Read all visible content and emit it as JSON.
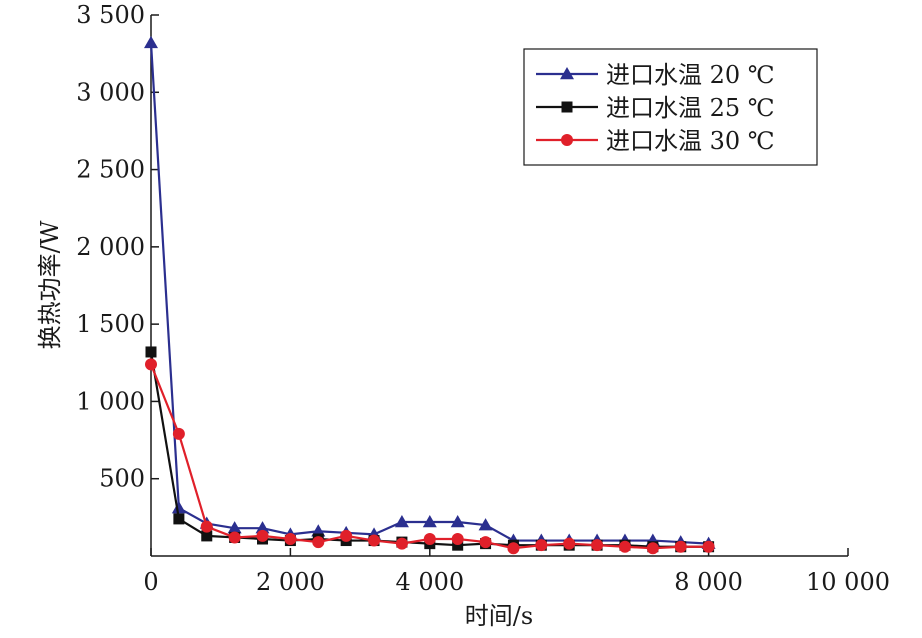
{
  "chart_data": {
    "type": "line",
    "xlabel": "时间/s",
    "ylabel": "换热功率/W",
    "xlim": [
      0,
      10000
    ],
    "ylim": [
      0,
      3500
    ],
    "x_ticks": [
      {
        "value": 0,
        "label": "0"
      },
      {
        "value": 2000,
        "label": "2 000"
      },
      {
        "value": 4000,
        "label": "4 000"
      },
      {
        "value": 8000,
        "label": "8 000"
      },
      {
        "value": 10000,
        "label": "10 000"
      }
    ],
    "y_ticks": [
      {
        "value": 500,
        "label": "500"
      },
      {
        "value": 1000,
        "label": "1 000"
      },
      {
        "value": 1500,
        "label": "1 500"
      },
      {
        "value": 2000,
        "label": "2 000"
      },
      {
        "value": 2500,
        "label": "2 500"
      },
      {
        "value": 3000,
        "label": "3 000"
      },
      {
        "value": 3500,
        "label": "3 500"
      }
    ],
    "legend_position": "top-right",
    "grid": false,
    "series": [
      {
        "name": "进口水温 20 ℃",
        "color": "#2b2f8f",
        "marker": "triangle",
        "x": [
          0,
          400,
          800,
          1200,
          1600,
          2000,
          2400,
          2800,
          3200,
          3600,
          4000,
          4400,
          4800,
          5200,
          5600,
          6000,
          6400,
          6800,
          7200,
          7600,
          8000
        ],
        "y": [
          3320,
          310,
          210,
          180,
          180,
          140,
          160,
          150,
          140,
          220,
          220,
          220,
          200,
          100,
          100,
          100,
          100,
          100,
          100,
          90,
          80
        ]
      },
      {
        "name": "进口水温 25 ℃",
        "color": "#111111",
        "marker": "square",
        "x": [
          0,
          400,
          800,
          1200,
          1600,
          2000,
          2400,
          2800,
          3200,
          3600,
          4000,
          4400,
          4800,
          5200,
          5600,
          6000,
          6400,
          6800,
          7200,
          7600,
          8000
        ],
        "y": [
          1320,
          240,
          130,
          120,
          110,
          100,
          110,
          100,
          100,
          90,
          80,
          70,
          80,
          70,
          70,
          70,
          70,
          70,
          60,
          60,
          60
        ]
      },
      {
        "name": "进口水温 30 ℃",
        "color": "#e0202a",
        "marker": "circle",
        "x": [
          0,
          400,
          800,
          1200,
          1600,
          2000,
          2400,
          2800,
          3200,
          3600,
          4000,
          4400,
          4800,
          5200,
          5600,
          6000,
          6400,
          6800,
          7200,
          7600,
          8000
        ],
        "y": [
          1240,
          790,
          190,
          120,
          130,
          110,
          90,
          130,
          100,
          80,
          110,
          110,
          90,
          50,
          70,
          80,
          70,
          60,
          50,
          60,
          60
        ]
      }
    ]
  }
}
